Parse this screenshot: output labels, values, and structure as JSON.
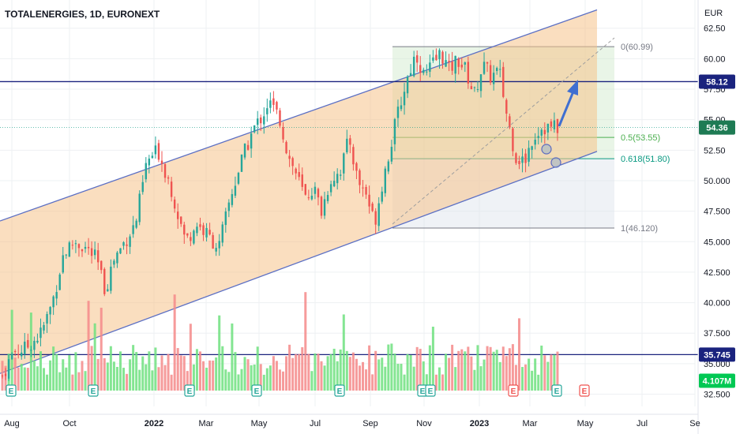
{
  "header": {
    "title": "TOTALENERGIES, 1D, EURONEXT",
    "currency": "EUR"
  },
  "chart_data": {
    "type": "candlestick",
    "x_tick_labels": [
      "Aug",
      "Oct",
      "2022",
      "Mar",
      "May",
      "Jul",
      "Sep",
      "Nov",
      "2023",
      "Mar",
      "May",
      "Jul",
      "Se"
    ],
    "y_tick_labels": [
      "32.500",
      "35.000",
      "37.500",
      "40.000",
      "42.500",
      "45.000",
      "47.500",
      "50.000",
      "52.50",
      "55.00",
      "57.50",
      "60.00",
      "62.50"
    ],
    "ylim": [
      31.5,
      63.0
    ],
    "price_axis_tags": [
      {
        "id": "resistance",
        "label": "58.12",
        "value": 58.12,
        "color": "#1a237e"
      },
      {
        "id": "last",
        "label": "54.36",
        "value": 54.36,
        "color": "#1e7b54"
      },
      {
        "id": "support",
        "label": "35.745",
        "value": 35.745,
        "color": "#1a237e"
      },
      {
        "id": "volume",
        "label": "4.107M",
        "value": 33.6,
        "color": "#00c853"
      }
    ],
    "horizontal_lines": [
      {
        "id": "resistance-line",
        "value": 58.12,
        "color": "#1a237e"
      },
      {
        "id": "support-line",
        "value": 35.745,
        "color": "#1a237e"
      }
    ],
    "fib_levels": [
      {
        "label": "0(60.99)",
        "value": 60.99,
        "color": "#787b86"
      },
      {
        "label": "0.5(53.55)",
        "value": 53.55,
        "color": "#4caf50"
      },
      {
        "label": "0.618(51.80)",
        "value": 51.8,
        "color": "#089981"
      },
      {
        "label": "1(46.120)",
        "value": 46.12,
        "color": "#787b86"
      }
    ],
    "channel": {
      "upper_start": 46.7,
      "upper_end": 64.0,
      "lower_start": 34.2,
      "lower_end": 52.4,
      "fill": "#f5c28a"
    },
    "earnings_markers": {
      "label": "E",
      "count": 10
    },
    "price_path": [
      [
        0,
        34.0
      ],
      [
        0.02,
        36.0
      ],
      [
        0.04,
        36.2
      ],
      [
        0.07,
        37.5
      ],
      [
        0.09,
        40.0
      ],
      [
        0.11,
        44.0
      ],
      [
        0.13,
        45.0
      ],
      [
        0.15,
        44.5
      ],
      [
        0.17,
        43.5
      ],
      [
        0.185,
        41.0
      ],
      [
        0.2,
        43.5
      ],
      [
        0.22,
        45.0
      ],
      [
        0.24,
        46.5
      ],
      [
        0.26,
        51.5
      ],
      [
        0.28,
        52.5
      ],
      [
        0.3,
        50.0
      ],
      [
        0.315,
        47.5
      ],
      [
        0.33,
        45.0
      ],
      [
        0.35,
        46.5
      ],
      [
        0.37,
        45.5
      ],
      [
        0.39,
        44.5
      ],
      [
        0.41,
        48.5
      ],
      [
        0.43,
        51.5
      ],
      [
        0.45,
        54.0
      ],
      [
        0.47,
        55.5
      ],
      [
        0.48,
        56.5
      ],
      [
        0.5,
        55.0
      ],
      [
        0.515,
        52.0
      ],
      [
        0.53,
        50.5
      ],
      [
        0.545,
        48.5
      ],
      [
        0.56,
        49.5
      ],
      [
        0.575,
        47.5
      ],
      [
        0.59,
        50.0
      ],
      [
        0.61,
        51.0
      ],
      [
        0.625,
        53.5
      ],
      [
        0.64,
        50.0
      ],
      [
        0.655,
        49.0
      ],
      [
        0.67,
        46.5
      ],
      [
        0.685,
        50.0
      ],
      [
        0.7,
        53.0
      ],
      [
        0.715,
        56.0
      ],
      [
        0.73,
        58.5
      ],
      [
        0.745,
        60.5
      ],
      [
        0.76,
        58.5
      ],
      [
        0.775,
        59.5
      ],
      [
        0.79,
        60.5
      ],
      [
        0.805,
        59.0
      ],
      [
        0.82,
        60.0
      ],
      [
        0.835,
        59.0
      ],
      [
        0.85,
        57.0
      ],
      [
        0.865,
        59.5
      ],
      [
        0.88,
        58.5
      ],
      [
        0.895,
        59.0
      ],
      [
        0.91,
        55.0
      ],
      [
        0.925,
        52.0
      ],
      [
        0.94,
        51.5
      ],
      [
        0.955,
        53.5
      ],
      [
        0.97,
        54.36
      ]
    ]
  }
}
